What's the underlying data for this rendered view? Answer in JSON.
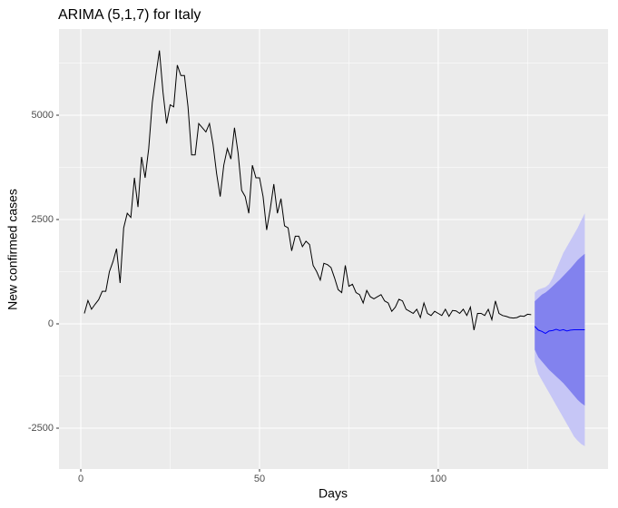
{
  "chart_data": {
    "type": "line",
    "title": "ARIMA (5,1,7) for Italy",
    "x_label": "Days",
    "y_label": "New confirmed cases",
    "xlim": [
      -6.1,
      147.5
    ],
    "ylim": [
      -3478,
      7065
    ],
    "xticks": [
      0,
      50,
      100
    ],
    "yticks": [
      -2500,
      0,
      2500,
      5000
    ],
    "grid": true,
    "series": [
      {
        "color": "#000000",
        "x": [
          1,
          2,
          3,
          4,
          5,
          6,
          7,
          8,
          9,
          10,
          11,
          12,
          13,
          14,
          15,
          16,
          17,
          18,
          19,
          20,
          21,
          22,
          23,
          24,
          25,
          26,
          27,
          28,
          29,
          30,
          31,
          32,
          33,
          34,
          35,
          36,
          37,
          38,
          39,
          40,
          41,
          42,
          43,
          44,
          45,
          46,
          47,
          48,
          49,
          50,
          51,
          52,
          53,
          54,
          55,
          56,
          57,
          58,
          59,
          60,
          61,
          62,
          63,
          64,
          65,
          66,
          67,
          68,
          69,
          70,
          71,
          72,
          73,
          74,
          75,
          76,
          77,
          78,
          79,
          80,
          81,
          82,
          83,
          84,
          85,
          86,
          87,
          88,
          89,
          90,
          91,
          92,
          93,
          94,
          95,
          96,
          97,
          98,
          99,
          100,
          101,
          102,
          103,
          104,
          105,
          106,
          107,
          108,
          109,
          110,
          111,
          112,
          113,
          114,
          115,
          116,
          117,
          118,
          119,
          120,
          121,
          122,
          123,
          124,
          125,
          126
        ],
        "values": [
          250,
          560,
          350,
          470,
          580,
          780,
          780,
          1250,
          1490,
          1800,
          980,
          2300,
          2650,
          2550,
          3500,
          2800,
          4000,
          3500,
          4200,
          5300,
          5950,
          6550,
          5550,
          4800,
          5250,
          5200,
          6200,
          5950,
          5950,
          5200,
          4050,
          4050,
          4800,
          4700,
          4600,
          4800,
          4300,
          3600,
          3050,
          3800,
          4200,
          3950,
          4700,
          4100,
          3200,
          3050,
          2650,
          3800,
          3500,
          3500,
          3050,
          2250,
          2750,
          3350,
          2650,
          3000,
          2350,
          2300,
          1750,
          2100,
          2100,
          1850,
          1980,
          1900,
          1400,
          1250,
          1050,
          1450,
          1420,
          1350,
          1100,
          820,
          750,
          1400,
          900,
          950,
          750,
          700,
          500,
          800,
          650,
          600,
          650,
          700,
          550,
          500,
          300,
          400,
          590,
          550,
          350,
          300,
          250,
          350,
          150,
          500,
          250,
          200,
          300,
          250,
          200,
          350,
          180,
          320,
          310,
          250,
          350,
          200,
          400,
          -150,
          250,
          250,
          200,
          350,
          100,
          550,
          250,
          200,
          180,
          150,
          140,
          150,
          190,
          180,
          230,
          220
        ]
      },
      {
        "color": "#0000ff",
        "x": [
          127,
          128,
          129,
          130,
          131,
          132,
          133,
          134,
          135,
          136,
          137,
          138,
          139,
          140,
          141
        ],
        "values": [
          -60,
          -150,
          -180,
          -230,
          -170,
          -160,
          -130,
          -160,
          -140,
          -170,
          -150,
          -140,
          -140,
          -140,
          -140
        ]
      }
    ],
    "bands": [
      {
        "color": "#c6c6f6",
        "x": [
          127,
          128,
          129,
          130,
          131,
          132,
          133,
          134,
          135,
          136,
          137,
          138,
          139,
          140,
          141
        ],
        "lower": [
          -900,
          -1200,
          -1350,
          -1500,
          -1650,
          -1800,
          -1950,
          -2100,
          -2250,
          -2400,
          -2550,
          -2700,
          -2800,
          -2880,
          -2930
        ],
        "upper": [
          750,
          820,
          850,
          880,
          950,
          1100,
          1300,
          1500,
          1700,
          1850,
          2000,
          2150,
          2300,
          2480,
          2650
        ]
      },
      {
        "color": "#8282ee",
        "x": [
          127,
          128,
          129,
          130,
          131,
          132,
          133,
          134,
          135,
          136,
          137,
          138,
          139,
          140,
          141
        ],
        "lower": [
          -620,
          -800,
          -900,
          -1000,
          -1100,
          -1180,
          -1260,
          -1340,
          -1420,
          -1520,
          -1620,
          -1720,
          -1820,
          -1900,
          -1960
        ],
        "upper": [
          540,
          620,
          700,
          750,
          820,
          900,
          980,
          1060,
          1150,
          1240,
          1330,
          1430,
          1530,
          1610,
          1680
        ]
      }
    ]
  }
}
